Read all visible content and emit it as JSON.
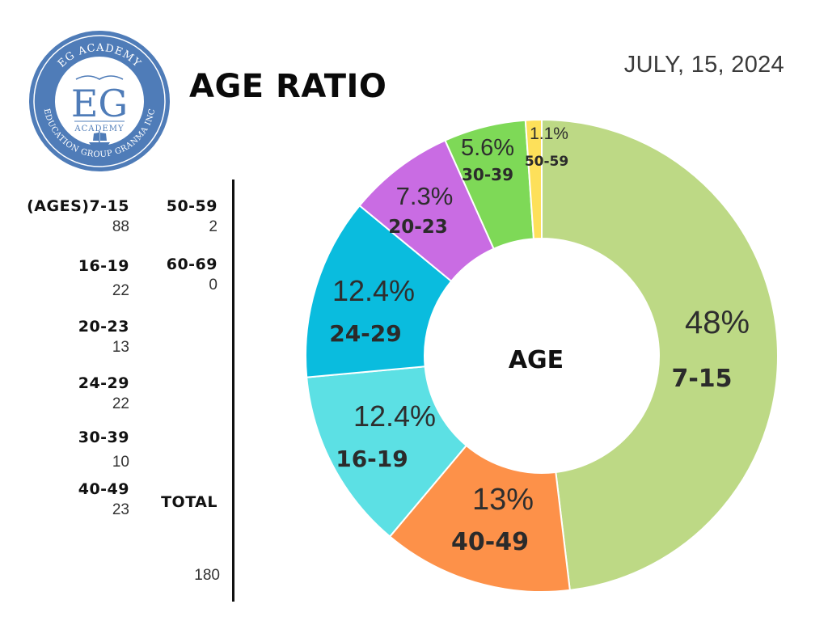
{
  "header": {
    "title": "AGE RATIO",
    "date": "JULY, 15, 2024"
  },
  "logo": {
    "top_arc": "EG ACADEMY",
    "initials": "EG",
    "sub": "ACADEMY",
    "bottom_arc": "EDUCATION GROUP GRANMA INC"
  },
  "table": {
    "left": [
      {
        "label": "(AGES)7-15",
        "value": "88"
      },
      {
        "label": "16-19",
        "value": "22"
      },
      {
        "label": "20-23",
        "value": "13"
      },
      {
        "label": "24-29",
        "value": "22"
      },
      {
        "label": "30-39",
        "value": "10"
      },
      {
        "label": "40-49",
        "value": "23"
      }
    ],
    "right": [
      {
        "label": "50-59",
        "value": "2"
      },
      {
        "label": "60-69",
        "value": "0"
      }
    ],
    "total_label": "TOTAL",
    "total_value": "180"
  },
  "chart_data": {
    "type": "pie",
    "center_label": "AGE",
    "slices": [
      {
        "category": "7-15",
        "percent_label": "48%",
        "value": 48,
        "color": "#bdd985"
      },
      {
        "category": "40-49",
        "percent_label": "13%",
        "value": 13,
        "color": "#fd9149"
      },
      {
        "category": "16-19",
        "percent_label": "12.4%",
        "value": 12.4,
        "color": "#5ce0e4"
      },
      {
        "category": "24-29",
        "percent_label": "12.4%",
        "value": 12.4,
        "color": "#0abcde"
      },
      {
        "category": "20-23",
        "percent_label": "7.3%",
        "value": 7.3,
        "color": "#c96ce3"
      },
      {
        "category": "30-39",
        "percent_label": "5.6%",
        "value": 5.6,
        "color": "#7ed957"
      },
      {
        "category": "50-59",
        "percent_label": "1.1%",
        "value": 1.1,
        "color": "#fde05a"
      }
    ]
  }
}
